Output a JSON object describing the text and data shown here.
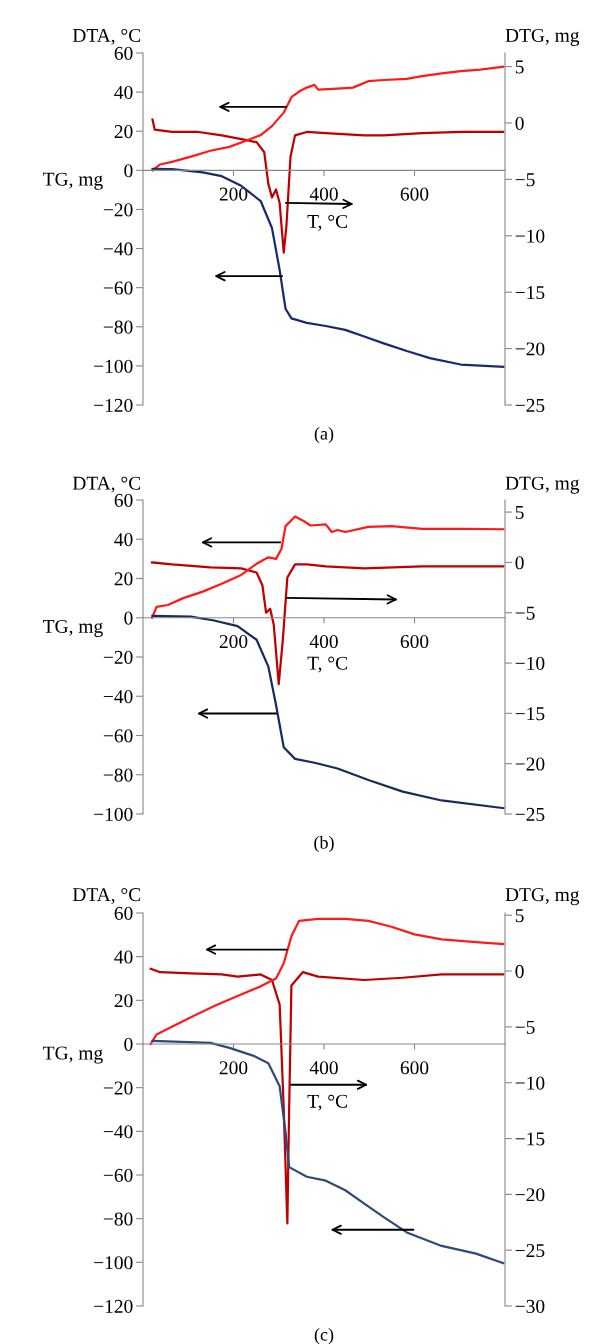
{
  "chart_data": [
    {
      "type": "line",
      "title": "(a)",
      "ylabel": "DTA, °C",
      "y2label": "DTG, mg",
      "xlabel": "T, °C",
      "annotations": [
        "TG, mg"
      ],
      "xlim": [
        0,
        800
      ],
      "xticks": [
        200,
        400,
        600
      ],
      "ylim": [
        -120,
        60
      ],
      "yticks": [
        {
          "value": -120,
          "label": "−120"
        },
        {
          "value": -100,
          "label": "−100"
        },
        {
          "value": -80,
          "label": "−80"
        },
        {
          "value": -60,
          "label": "−60"
        },
        {
          "value": -40,
          "label": "−40"
        },
        {
          "value": -20,
          "label": "−20"
        },
        0,
        20,
        40,
        60
      ],
      "y2lim": [
        -25,
        6.2
      ],
      "y2ticks": [
        {
          "value": -25,
          "label": "−25"
        },
        {
          "value": -20,
          "label": "−20"
        },
        {
          "value": -15,
          "label": "−15"
        },
        {
          "value": -10,
          "label": "−10"
        },
        {
          "value": -5,
          "label": "−5"
        },
        0,
        5
      ],
      "series": [
        {
          "color": "#ff1a1a",
          "x": [
            21,
            38,
            64,
            106,
            149,
            191,
            226,
            260,
            285,
            311,
            328,
            345,
            362,
            379,
            387,
            421,
            464,
            498,
            532,
            583,
            617,
            660,
            702,
            745,
            796
          ],
          "values": [
            0,
            3,
            4.3,
            7,
            10,
            12,
            15,
            18,
            22.6,
            29.5,
            37.4,
            40.3,
            42.3,
            43.7,
            41.3,
            41.7,
            42.3,
            45.6,
            46.2,
            46.8,
            48.2,
            49.6,
            50.7,
            51.5,
            53
          ]
        },
        {
          "color": "#c00000",
          "axis": "y2",
          "x": [
            21,
            26,
            64,
            123,
            174,
            226,
            251,
            268,
            277,
            285,
            294,
            302,
            311,
            317,
            326,
            336,
            362,
            404,
            489,
            532,
            617,
            702,
            796
          ],
          "values": [
            0.3,
            -0.6,
            -0.8,
            -0.8,
            -1.1,
            -1.5,
            -1.7,
            -2.6,
            -5.4,
            -6.6,
            -5.9,
            -7.1,
            -11.5,
            -9.1,
            -3.0,
            -1.1,
            -0.8,
            -0.9,
            -1.1,
            -1.1,
            -0.9,
            -0.8,
            -0.8
          ]
        },
        {
          "color": "#1a2a6c",
          "x": [
            21,
            64,
            132,
            174,
            217,
            260,
            285,
            302,
            315,
            328,
            362,
            404,
            447,
            489,
            532,
            583,
            634,
            702,
            796
          ],
          "values": [
            0.8,
            0.6,
            -1,
            -3,
            -7.9,
            -15.7,
            -29.5,
            -51,
            -70.8,
            -75.7,
            -78,
            -79.6,
            -81.6,
            -85,
            -88.5,
            -92.4,
            -96,
            -99.3,
            -100.5
          ]
        }
      ]
    },
    {
      "type": "line",
      "title": "(b)",
      "ylabel": "DTA, °C",
      "y2label": "DTG, mg",
      "xlabel": "T, °C",
      "annotations": [
        "TG, mg"
      ],
      "xlim": [
        0,
        800
      ],
      "xticks": [
        200,
        400,
        600
      ],
      "ylim": [
        -100,
        60
      ],
      "yticks": [
        {
          "value": -100,
          "label": "−100"
        },
        {
          "value": -80,
          "label": "−80"
        },
        {
          "value": -60,
          "label": "−60"
        },
        {
          "value": -40,
          "label": "−40"
        },
        {
          "value": -20,
          "label": "−20"
        },
        0,
        20,
        40,
        60
      ],
      "y2lim": [
        -25,
        6.2
      ],
      "y2ticks": [
        {
          "value": -25,
          "label": "−25"
        },
        {
          "value": -20,
          "label": "−20"
        },
        {
          "value": -15,
          "label": "−15"
        },
        {
          "value": -10,
          "label": "−10"
        },
        {
          "value": -5,
          "label": "−5"
        },
        0,
        5
      ],
      "series": [
        {
          "color": "#ff1a1a",
          "x": [
            20,
            30,
            55,
            89,
            132,
            174,
            217,
            251,
            277,
            294,
            306,
            315,
            336,
            353,
            370,
            404,
            417,
            430,
            447,
            498,
            549,
            617,
            702,
            796
          ],
          "values": [
            0,
            5.5,
            6.5,
            10,
            13.3,
            17.3,
            21.8,
            27.5,
            30.8,
            30,
            35,
            46.7,
            51.6,
            49.6,
            47,
            47.6,
            43.7,
            44.7,
            43.7,
            46.3,
            46.7,
            45.3,
            45.3,
            45.1
          ]
        },
        {
          "color": "#c00000",
          "axis": "y2",
          "x": [
            20,
            64,
            149,
            217,
            251,
            264,
            272,
            281,
            289,
            300,
            309,
            319,
            336,
            362,
            404,
            489,
            617,
            796
          ],
          "values": [
            0,
            -0.2,
            -0.5,
            -0.6,
            -1.0,
            -2.3,
            -5,
            -4.6,
            -6.2,
            -12.1,
            -7.7,
            -1.5,
            -0.2,
            -0.2,
            -0.4,
            -0.6,
            -0.4,
            -0.4
          ]
        },
        {
          "color": "#1a2a5c",
          "x": [
            21,
            106,
            157,
            209,
            251,
            277,
            294,
            311,
            336,
            379,
            430,
            498,
            574,
            660,
            796
          ],
          "values": [
            1,
            0.6,
            -1.4,
            -4.3,
            -11.2,
            -24.9,
            -44.5,
            -66,
            -71.9,
            -73.9,
            -76.8,
            -82.7,
            -88.6,
            -93.1,
            -97
          ]
        }
      ]
    },
    {
      "type": "line",
      "title": "(c)",
      "ylabel": "DTA, °C",
      "y2label": "DTG, mg",
      "xlabel": "T, °C",
      "annotations": [
        "TG, mg"
      ],
      "xlim": [
        0,
        800
      ],
      "xticks": [
        200,
        400,
        600
      ],
      "ylim": [
        -120,
        60
      ],
      "yticks": [
        {
          "value": -120,
          "label": "−120"
        },
        {
          "value": -100,
          "label": "−100"
        },
        {
          "value": -80,
          "label": "−80"
        },
        {
          "value": -60,
          "label": "−60"
        },
        {
          "value": -40,
          "label": "−40"
        },
        {
          "value": -20,
          "label": "−20"
        },
        0,
        20,
        40,
        60
      ],
      "y2lim": [
        -30,
        5.2
      ],
      "y2ticks": [
        {
          "value": -30,
          "label": "−30"
        },
        {
          "value": -25,
          "label": "−25"
        },
        {
          "value": -20,
          "label": "−20"
        },
        {
          "value": -15,
          "label": "−15"
        },
        {
          "value": -10,
          "label": "−10"
        },
        {
          "value": -5,
          "label": "−5"
        },
        0,
        5
      ],
      "series": [
        {
          "color": "#ff1a1a",
          "x": [
            17,
            30,
            64,
            106,
            160,
            209,
            260,
            294,
            311,
            328,
            345,
            387,
            447,
            498,
            549,
            600,
            660,
            736,
            796
          ],
          "values": [
            0,
            4.4,
            7.9,
            12.3,
            17.6,
            22,
            26.4,
            30,
            37,
            49.3,
            56.4,
            57.3,
            57.3,
            56.4,
            53.7,
            50.2,
            47.9,
            46.7,
            45.8
          ]
        },
        {
          "color": "#c00000",
          "axis": "y2",
          "x": [
            17,
            38,
            106,
            174,
            209,
            260,
            285,
            302,
            311,
            319,
            323,
            328,
            353,
            387,
            489,
            574,
            660,
            796
          ],
          "values": [
            0.2,
            -0.1,
            -0.2,
            -0.3,
            -0.5,
            -0.3,
            -0.8,
            -3,
            -12.3,
            -22.6,
            -12.3,
            -1.3,
            -0.1,
            -0.5,
            -0.8,
            -0.6,
            -0.3,
            -0.3
          ]
        },
        {
          "color": "#2f4a78",
          "x": [
            21,
            149,
            191,
            243,
            277,
            302,
            315,
            323,
            362,
            404,
            447,
            489,
            532,
            583,
            660,
            736,
            796
          ],
          "values": [
            1.4,
            0.5,
            -1.8,
            -5.3,
            -8.8,
            -19.4,
            -40.5,
            -56.4,
            -60.8,
            -62.6,
            -67,
            -73.1,
            -79.3,
            -86.3,
            -92.5,
            -96,
            -100.4
          ]
        }
      ]
    }
  ]
}
